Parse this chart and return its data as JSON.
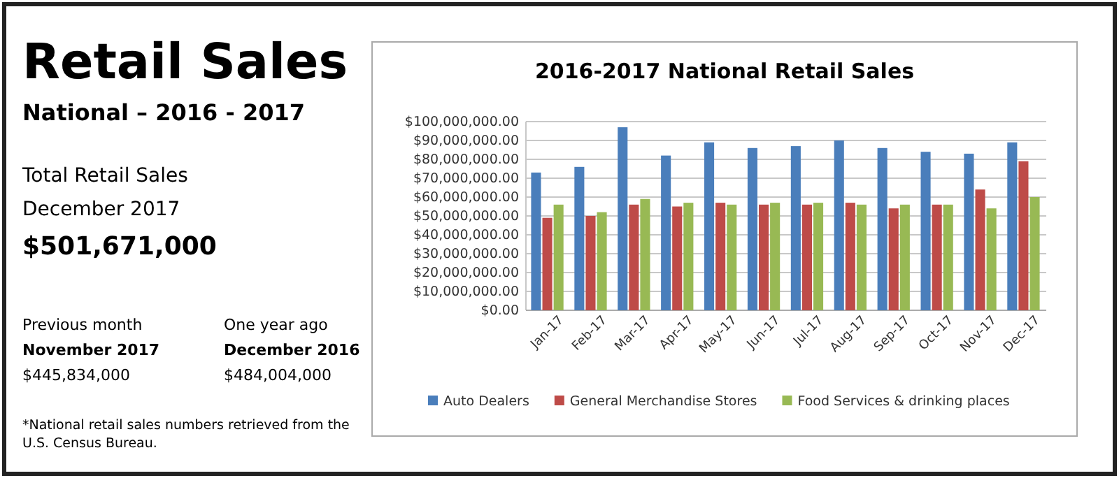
{
  "chart_data": [
    {
      "type": "other",
      "title": "Retail Sales",
      "subtitle": "National – 2016 - 2017",
      "annotations": [
        "Total Retail Sales",
        "December 2017",
        "$501,671,000",
        "Previous month",
        "November 2017",
        "$445,834,000",
        "One year ago",
        "December 2016",
        "$484,004,000",
        "*National retail sales numbers retrieved from the U.S. Census Bureau."
      ]
    },
    {
      "type": "bar",
      "title": "2016-2017 National Retail Sales",
      "categories": [
        "Jan-17",
        "Feb-17",
        "Mar-17",
        "Apr-17",
        "May-17",
        "Jun-17",
        "Jul-17",
        "Aug-17",
        "Sep-17",
        "Oct-17",
        "Nov-17",
        "Dec-17"
      ],
      "series": [
        {
          "name": "Auto Dealers",
          "color": "#4a7ebb",
          "values": [
            73000000,
            76000000,
            97000000,
            82000000,
            89000000,
            86000000,
            87000000,
            90000000,
            86000000,
            84000000,
            83000000,
            89000000
          ]
        },
        {
          "name": "General Merchandise Stores",
          "color": "#be4b48",
          "values": [
            49000000,
            50000000,
            56000000,
            55000000,
            57000000,
            56000000,
            56000000,
            57000000,
            54000000,
            56000000,
            64000000,
            79000000
          ]
        },
        {
          "name": "Food Services & drinking places",
          "color": "#98b954",
          "values": [
            56000000,
            52000000,
            59000000,
            57000000,
            56000000,
            57000000,
            57000000,
            56000000,
            56000000,
            56000000,
            54000000,
            60000000
          ]
        }
      ],
      "ylim": [
        0,
        100000000
      ],
      "yticks": [
        {
          "value": 0,
          "label": "$0.00"
        },
        {
          "value": 10000000,
          "label": "$10,000,000.00"
        },
        {
          "value": 20000000,
          "label": "$20,000,000.00"
        },
        {
          "value": 30000000,
          "label": "$30,000,000.00"
        },
        {
          "value": 40000000,
          "label": "$40,000,000.00"
        },
        {
          "value": 50000000,
          "label": "$50,000,000.00"
        },
        {
          "value": 60000000,
          "label": "$60,000,000.00"
        },
        {
          "value": 70000000,
          "label": "$70,000,000.00"
        },
        {
          "value": 80000000,
          "label": "$80,000,000.00"
        },
        {
          "value": 90000000,
          "label": "$90,000,000.00"
        },
        {
          "value": 100000000,
          "label": "$100,000,000.00"
        }
      ],
      "grid": "y",
      "legend": "bottom"
    }
  ]
}
